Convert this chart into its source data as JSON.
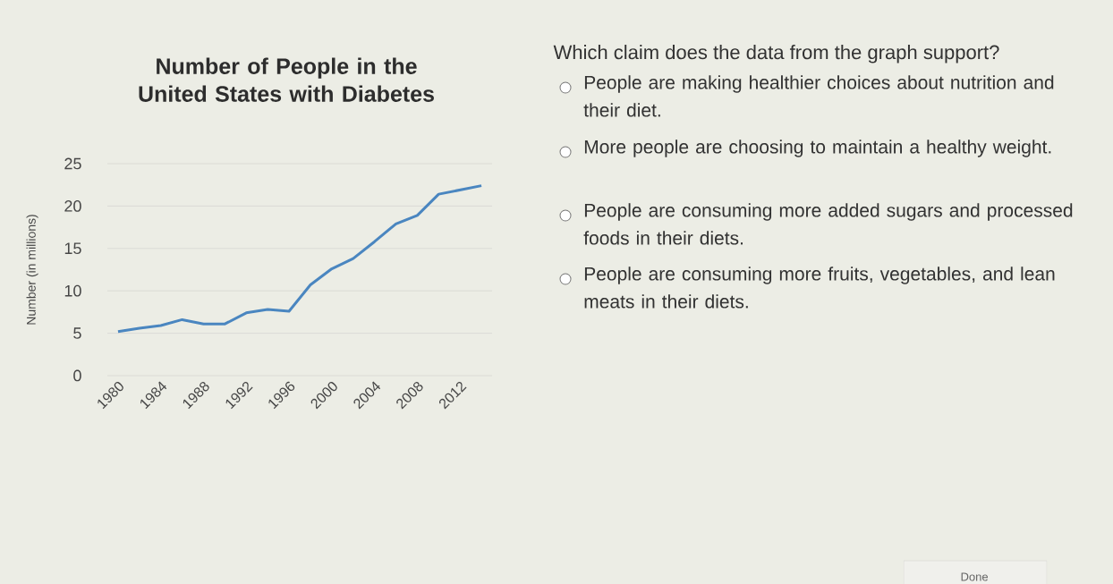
{
  "chart_data": [
    {
      "type": "line",
      "title": "Number of People in the United States with Diabetes",
      "ylabel": "Number (in millions)",
      "x": [
        1980,
        1982,
        1984,
        1986,
        1988,
        1990,
        1992,
        1994,
        1996,
        1998,
        2000,
        2002,
        2004,
        2006,
        2008,
        2010,
        2014
      ],
      "series": [
        {
          "color": "#4a86c0",
          "values": [
            5.2,
            5.6,
            5.9,
            6.6,
            6.1,
            6.1,
            7.4,
            7.8,
            7.6,
            10.7,
            12.6,
            13.8,
            15.8,
            17.9,
            18.9,
            21.4,
            22.4
          ]
        }
      ],
      "xlim": [
        1979,
        2015
      ],
      "xticks": [
        1980,
        1984,
        1988,
        1992,
        1996,
        2000,
        2004,
        2008,
        2012
      ],
      "ylim": [
        0,
        25
      ],
      "yticks": [
        0,
        5,
        10,
        15,
        20,
        25
      ],
      "grid": "y"
    },
    {
      "type": "other",
      "title": "Which claim does the data from the graph support?",
      "annotations": [
        "People are making healthier choices about nutrition and their diet.",
        "More people are choosing to maintain a healthy weight.",
        "People are consuming more added sugars and processed foods in their diets.",
        "People are consuming more fruits, vegetables, and lean meats in their diets.",
        "Done"
      ]
    }
  ]
}
